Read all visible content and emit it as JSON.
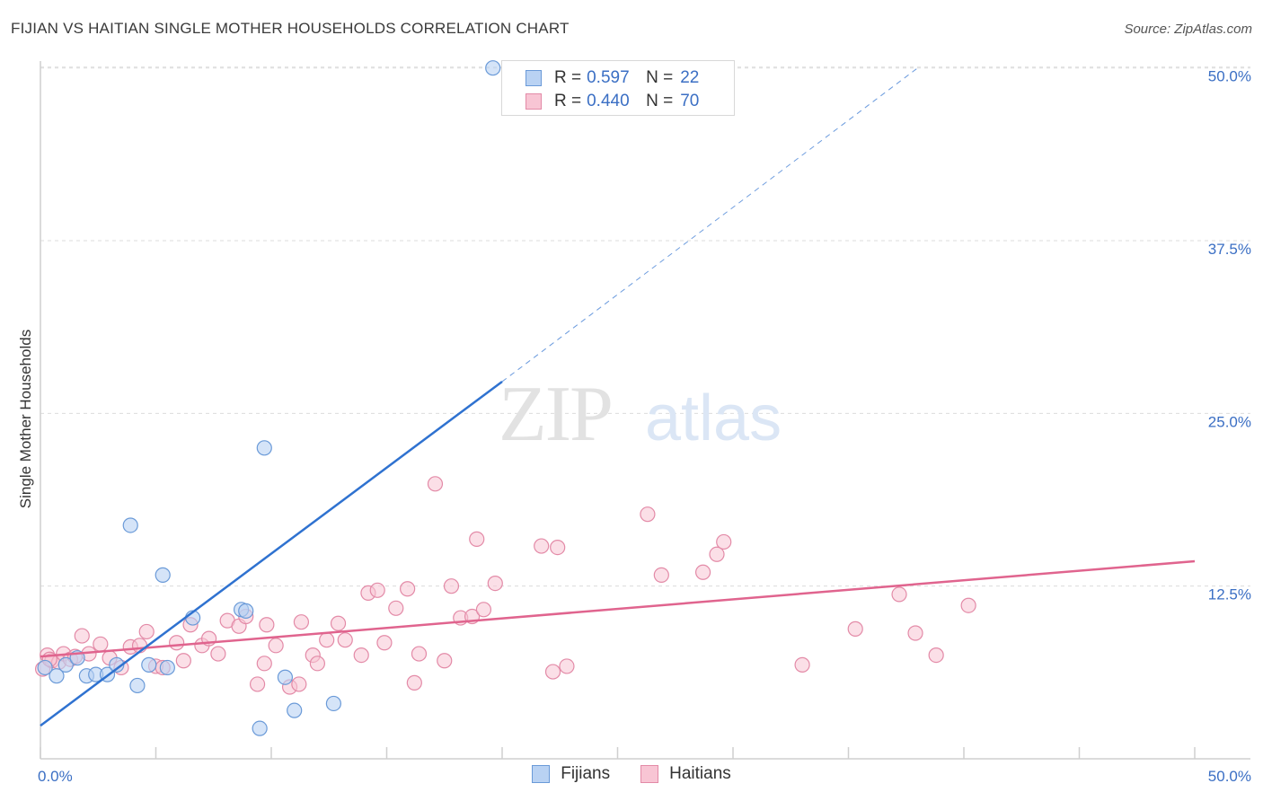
{
  "header": {
    "title": "FIJIAN VS HAITIAN SINGLE MOTHER HOUSEHOLDS CORRELATION CHART",
    "source": "Source: ZipAtlas.com"
  },
  "watermark": {
    "zip": "ZIP",
    "atlas": "atlas"
  },
  "legend_top": [
    {
      "r_label": "R =",
      "r_value": "0.597",
      "n_label": "N =",
      "n_value": "22"
    },
    {
      "r_label": "R =",
      "r_value": "0.440",
      "n_label": "N =",
      "n_value": "70"
    }
  ],
  "legend_bottom": {
    "fijians": "Fijians",
    "haitians": "Haitians"
  },
  "colors": {
    "fijian_fill": "#b9d2f3",
    "fijian_stroke": "#6a9ad8",
    "fijian_line": "#2f72d0",
    "haitian_fill": "#f8c5d4",
    "haitian_stroke": "#e38aa7",
    "haitian_line": "#e0648e",
    "tick_text": "#3b6fc4",
    "grid": "#dcdcdc"
  },
  "chart_data": {
    "type": "scatter",
    "title": "FIJIAN VS HAITIAN SINGLE MOTHER HOUSEHOLDS CORRELATION CHART",
    "xlabel": "",
    "ylabel": "Single Mother Households",
    "xlim": [
      0,
      50
    ],
    "ylim": [
      0,
      50.5
    ],
    "x_tick_labels": [
      "0.0%",
      "50.0%"
    ],
    "y_ticks": [
      12.5,
      25.0,
      37.5,
      50.0
    ],
    "y_tick_labels": [
      "12.5%",
      "25.0%",
      "37.5%",
      "50.0%"
    ],
    "series": [
      {
        "name": "Fijians",
        "points": [
          [
            0.2,
            6.6
          ],
          [
            0.7,
            6.0
          ],
          [
            1.1,
            6.8
          ],
          [
            1.6,
            7.3
          ],
          [
            2.0,
            6.0
          ],
          [
            2.4,
            6.1
          ],
          [
            2.9,
            6.1
          ],
          [
            3.3,
            6.8
          ],
          [
            3.9,
            16.9
          ],
          [
            4.2,
            5.3
          ],
          [
            4.7,
            6.8
          ],
          [
            5.3,
            13.3
          ],
          [
            5.5,
            6.6
          ],
          [
            6.6,
            10.2
          ],
          [
            8.7,
            10.8
          ],
          [
            8.9,
            10.7
          ],
          [
            9.5,
            2.2
          ],
          [
            9.7,
            22.5
          ],
          [
            10.6,
            5.9
          ],
          [
            11.0,
            3.5
          ],
          [
            12.7,
            4.0
          ],
          [
            19.6,
            50.0
          ]
        ],
        "trend": {
          "x": [
            0,
            20
          ],
          "y": [
            2.4,
            27.3
          ],
          "dashed_to": {
            "x": 38,
            "y": 50.0
          }
        }
      },
      {
        "name": "Haitians",
        "points": [
          [
            0.1,
            6.5
          ],
          [
            0.3,
            7.5
          ],
          [
            0.5,
            7.1
          ],
          [
            0.8,
            7.0
          ],
          [
            1.0,
            7.6
          ],
          [
            1.3,
            7.2
          ],
          [
            1.5,
            7.4
          ],
          [
            1.8,
            8.9
          ],
          [
            2.1,
            7.6
          ],
          [
            2.6,
            8.3
          ],
          [
            3.0,
            7.3
          ],
          [
            3.5,
            6.6
          ],
          [
            3.9,
            8.1
          ],
          [
            4.3,
            8.2
          ],
          [
            4.6,
            9.2
          ],
          [
            5.0,
            6.7
          ],
          [
            5.3,
            6.6
          ],
          [
            5.9,
            8.4
          ],
          [
            6.2,
            7.1
          ],
          [
            6.5,
            9.7
          ],
          [
            7.0,
            8.2
          ],
          [
            7.3,
            8.7
          ],
          [
            7.7,
            7.6
          ],
          [
            8.1,
            10.0
          ],
          [
            8.6,
            9.6
          ],
          [
            8.9,
            10.3
          ],
          [
            9.4,
            5.4
          ],
          [
            9.7,
            6.9
          ],
          [
            9.8,
            9.7
          ],
          [
            10.2,
            8.2
          ],
          [
            10.8,
            5.2
          ],
          [
            11.2,
            5.4
          ],
          [
            11.3,
            9.9
          ],
          [
            11.8,
            7.5
          ],
          [
            12.0,
            6.9
          ],
          [
            12.4,
            8.6
          ],
          [
            12.9,
            9.8
          ],
          [
            13.2,
            8.6
          ],
          [
            13.9,
            7.5
          ],
          [
            14.2,
            12.0
          ],
          [
            14.6,
            12.2
          ],
          [
            14.9,
            8.4
          ],
          [
            15.4,
            10.9
          ],
          [
            15.9,
            12.3
          ],
          [
            16.2,
            5.5
          ],
          [
            16.4,
            7.6
          ],
          [
            17.1,
            19.9
          ],
          [
            17.5,
            7.1
          ],
          [
            17.8,
            12.5
          ],
          [
            18.2,
            10.2
          ],
          [
            18.7,
            10.3
          ],
          [
            18.9,
            15.9
          ],
          [
            19.2,
            10.8
          ],
          [
            19.7,
            12.7
          ],
          [
            21.7,
            15.4
          ],
          [
            22.2,
            6.3
          ],
          [
            22.4,
            15.3
          ],
          [
            22.8,
            6.7
          ],
          [
            26.3,
            17.7
          ],
          [
            26.9,
            13.3
          ],
          [
            28.7,
            13.5
          ],
          [
            29.3,
            14.8
          ],
          [
            29.6,
            15.7
          ],
          [
            33.0,
            6.8
          ],
          [
            35.3,
            9.4
          ],
          [
            37.2,
            11.9
          ],
          [
            37.9,
            9.1
          ],
          [
            38.8,
            7.5
          ],
          [
            40.2,
            11.1
          ],
          [
            0.4,
            7.2
          ]
        ],
        "trend": {
          "x": [
            0,
            50
          ],
          "y": [
            7.4,
            14.3
          ]
        }
      }
    ]
  }
}
